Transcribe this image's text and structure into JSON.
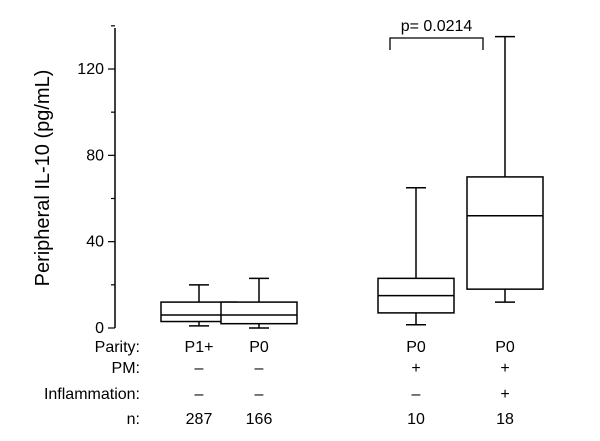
{
  "chart_data": {
    "type": "box",
    "ylabel": "Peripheral IL-10 (pg/mL)",
    "ylim": [
      0,
      140
    ],
    "yticks": [
      0,
      40,
      80,
      120
    ],
    "categories": [
      "P1+",
      "P0",
      "P0",
      "P0"
    ],
    "boxes": [
      {
        "whisker_low": 1,
        "q1": 3,
        "median": 6,
        "q3": 12,
        "whisker_high": 20
      },
      {
        "whisker_low": 0,
        "q1": 2,
        "median": 6,
        "q3": 12,
        "whisker_high": 23
      },
      {
        "whisker_low": 1.5,
        "q1": 7,
        "median": 15,
        "q3": 23,
        "whisker_high": 65
      },
      {
        "whisker_low": 12,
        "q1": 18,
        "median": 52,
        "q3": 70,
        "whisker_high": 135
      }
    ],
    "table": {
      "rows": [
        {
          "label": "Parity:",
          "values": [
            "P1+",
            "P0",
            "P0",
            "P0"
          ]
        },
        {
          "label": "PM:",
          "values": [
            "–",
            "–",
            "+",
            "+"
          ]
        },
        {
          "label": "Inflammation:",
          "values": [
            "–",
            "–",
            "–",
            "+"
          ]
        },
        {
          "label": "n:",
          "values": [
            "287",
            "166",
            "10",
            "18"
          ]
        }
      ]
    },
    "annotation": {
      "text": "p= 0.0214",
      "between": [
        2,
        3
      ]
    }
  }
}
